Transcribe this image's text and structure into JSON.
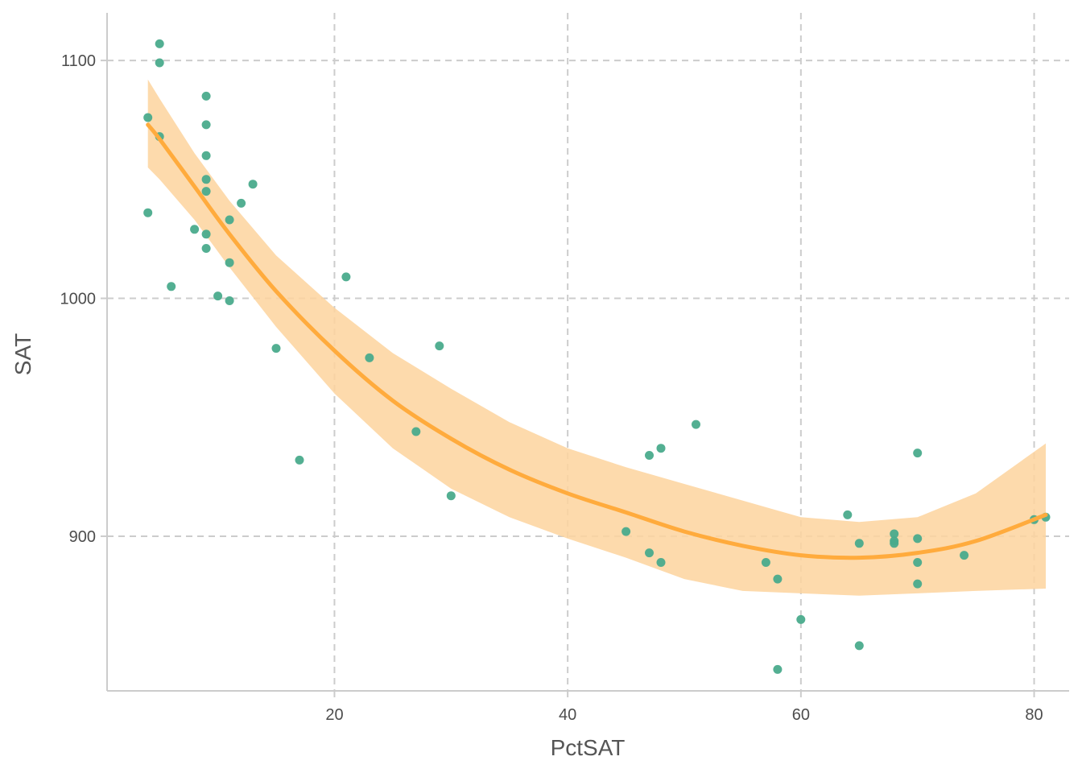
{
  "chart_data": {
    "type": "scatter",
    "title": "",
    "xlabel": "PctSAT",
    "ylabel": "SAT",
    "xlim": [
      0.5,
      83
    ],
    "ylim": [
      835,
      1120
    ],
    "x_ticks": [
      20,
      40,
      60,
      80
    ],
    "y_ticks": [
      900,
      1000,
      1100
    ],
    "x_tick_labels": [
      "20",
      "40",
      "60",
      "80"
    ],
    "y_tick_labels": [
      "900",
      "1000",
      "1100"
    ],
    "grid": true,
    "grid_style": "dashed",
    "legend": "none",
    "colors": {
      "points": "#4aab8c",
      "fit_line": "#ffab3d",
      "band": "#fdd49e",
      "grid": "#cccccc",
      "axis": "#cccccc"
    },
    "points": [
      {
        "x": 4,
        "y": 1076
      },
      {
        "x": 4,
        "y": 1036
      },
      {
        "x": 5,
        "y": 1107
      },
      {
        "x": 5,
        "y": 1099
      },
      {
        "x": 5,
        "y": 1068
      },
      {
        "x": 6,
        "y": 1005
      },
      {
        "x": 8,
        "y": 1029
      },
      {
        "x": 9,
        "y": 1085
      },
      {
        "x": 9,
        "y": 1073
      },
      {
        "x": 9,
        "y": 1060
      },
      {
        "x": 9,
        "y": 1050
      },
      {
        "x": 9,
        "y": 1045
      },
      {
        "x": 9,
        "y": 1027
      },
      {
        "x": 9,
        "y": 1021
      },
      {
        "x": 10,
        "y": 1001
      },
      {
        "x": 11,
        "y": 1033
      },
      {
        "x": 11,
        "y": 1015
      },
      {
        "x": 11,
        "y": 999
      },
      {
        "x": 12,
        "y": 1040
      },
      {
        "x": 13,
        "y": 1048
      },
      {
        "x": 15,
        "y": 979
      },
      {
        "x": 17,
        "y": 932
      },
      {
        "x": 21,
        "y": 1009
      },
      {
        "x": 23,
        "y": 975
      },
      {
        "x": 27,
        "y": 944
      },
      {
        "x": 29,
        "y": 980
      },
      {
        "x": 30,
        "y": 917
      },
      {
        "x": 45,
        "y": 902
      },
      {
        "x": 47,
        "y": 934
      },
      {
        "x": 47,
        "y": 893
      },
      {
        "x": 48,
        "y": 937
      },
      {
        "x": 48,
        "y": 889
      },
      {
        "x": 51,
        "y": 947
      },
      {
        "x": 57,
        "y": 889
      },
      {
        "x": 58,
        "y": 882
      },
      {
        "x": 58,
        "y": 844
      },
      {
        "x": 60,
        "y": 865
      },
      {
        "x": 64,
        "y": 909
      },
      {
        "x": 65,
        "y": 897
      },
      {
        "x": 65,
        "y": 854
      },
      {
        "x": 68,
        "y": 901
      },
      {
        "x": 68,
        "y": 898
      },
      {
        "x": 68,
        "y": 897
      },
      {
        "x": 70,
        "y": 935
      },
      {
        "x": 70,
        "y": 899
      },
      {
        "x": 70,
        "y": 889
      },
      {
        "x": 70,
        "y": 880
      },
      {
        "x": 74,
        "y": 892
      },
      {
        "x": 80,
        "y": 907
      },
      {
        "x": 81,
        "y": 908
      }
    ],
    "fit": {
      "method": "loess",
      "x": [
        4,
        5,
        8,
        11,
        15,
        20,
        25,
        30,
        35,
        40,
        45,
        50,
        55,
        60,
        65,
        70,
        75,
        81
      ],
      "y": [
        1073,
        1067,
        1047,
        1027,
        1003,
        978,
        957,
        941,
        928,
        918,
        910,
        902,
        896,
        892,
        891,
        893,
        898,
        909
      ],
      "lower": [
        1055,
        1050,
        1033,
        1013,
        988,
        960,
        937,
        920,
        908,
        899,
        891,
        882,
        877,
        876,
        875,
        876,
        877,
        878
      ],
      "upper": [
        1092,
        1084,
        1061,
        1041,
        1018,
        996,
        977,
        962,
        948,
        937,
        929,
        922,
        915,
        908,
        906,
        908,
        918,
        939
      ]
    }
  }
}
